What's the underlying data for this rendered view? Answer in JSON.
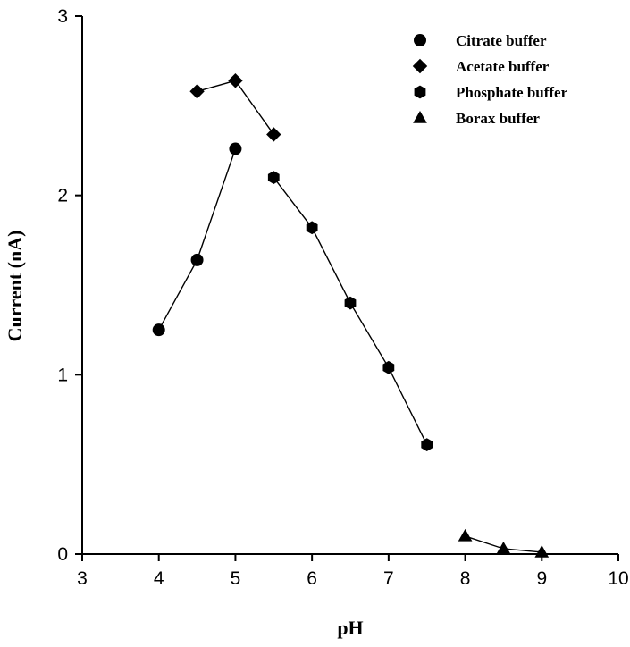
{
  "chart_data": {
    "type": "line",
    "title": "",
    "xlabel": "pH",
    "ylabel": "Current (nA)",
    "xlim": [
      3,
      10
    ],
    "ylim": [
      0,
      3
    ],
    "x_ticks": [
      "3",
      "4",
      "5",
      "6",
      "7",
      "8",
      "9",
      "10"
    ],
    "y_ticks": [
      "0",
      "1",
      "2",
      "3"
    ],
    "grid": false,
    "legend_position": "top-right",
    "series": [
      {
        "name": "Citrate buffer",
        "marker": "circle",
        "x": [
          4,
          4.5,
          5
        ],
        "y": [
          1.25,
          1.64,
          2.26
        ]
      },
      {
        "name": "Acetate buffer",
        "marker": "diamond",
        "x": [
          4.5,
          5,
          5.5
        ],
        "y": [
          2.58,
          2.64,
          2.34
        ]
      },
      {
        "name": "Phosphate buffer",
        "marker": "hexagon",
        "x": [
          5.5,
          6,
          6.5,
          7,
          7.5
        ],
        "y": [
          2.1,
          1.82,
          1.4,
          1.04,
          0.61
        ]
      },
      {
        "name": "Borax buffer",
        "marker": "triangle",
        "x": [
          8,
          8.5,
          9
        ],
        "y": [
          0.1,
          0.03,
          0.01
        ]
      }
    ]
  }
}
